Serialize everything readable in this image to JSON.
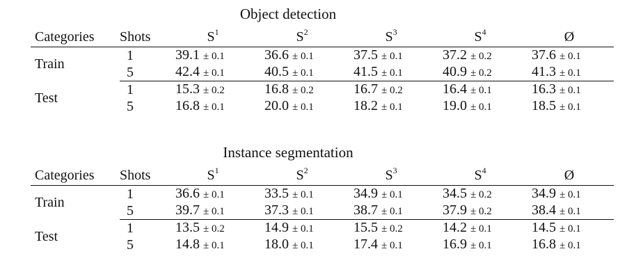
{
  "tables": [
    {
      "title": "Object detection",
      "headers": [
        "Categories",
        "Shots",
        "S",
        "S",
        "S",
        "S",
        "Ø"
      ],
      "header_sups": [
        "",
        "",
        "1",
        "2",
        "3",
        "4",
        ""
      ],
      "groups": [
        {
          "label": "Train",
          "rows": [
            {
              "shots": "1",
              "cells": [
                {
                  "v": "39.1",
                  "e": "± 0.1"
                },
                {
                  "v": "36.6",
                  "e": "± 0.1"
                },
                {
                  "v": "37.5",
                  "e": "± 0.1"
                },
                {
                  "v": "37.2",
                  "e": "± 0.2"
                },
                {
                  "v": "37.6",
                  "e": "± 0.1"
                }
              ]
            },
            {
              "shots": "5",
              "cells": [
                {
                  "v": "42.4",
                  "e": "± 0.1"
                },
                {
                  "v": "40.5",
                  "e": "± 0.1"
                },
                {
                  "v": "41.5",
                  "e": "± 0.1"
                },
                {
                  "v": "40.9",
                  "e": "± 0.2"
                },
                {
                  "v": "41.3",
                  "e": "± 0.1"
                }
              ]
            }
          ]
        },
        {
          "label": "Test",
          "rows": [
            {
              "shots": "1",
              "cells": [
                {
                  "v": "15.3",
                  "e": "± 0.2"
                },
                {
                  "v": "16.8",
                  "e": "± 0.2"
                },
                {
                  "v": "16.7",
                  "e": "± 0.2"
                },
                {
                  "v": "16.4",
                  "e": "± 0.1"
                },
                {
                  "v": "16.3",
                  "e": "± 0.1"
                }
              ]
            },
            {
              "shots": "5",
              "cells": [
                {
                  "v": "16.8",
                  "e": "± 0.1"
                },
                {
                  "v": "20.0",
                  "e": "± 0.1"
                },
                {
                  "v": "18.2",
                  "e": "± 0.1"
                },
                {
                  "v": "19.0",
                  "e": "± 0.1"
                },
                {
                  "v": "18.5",
                  "e": "± 0.1"
                }
              ]
            }
          ]
        }
      ]
    },
    {
      "title": "Instance segmentation",
      "headers": [
        "Categories",
        "Shots",
        "S",
        "S",
        "S",
        "S",
        "Ø"
      ],
      "header_sups": [
        "",
        "",
        "1",
        "2",
        "3",
        "4",
        ""
      ],
      "groups": [
        {
          "label": "Train",
          "rows": [
            {
              "shots": "1",
              "cells": [
                {
                  "v": "36.6",
                  "e": "± 0.1"
                },
                {
                  "v": "33.5",
                  "e": "± 0.1"
                },
                {
                  "v": "34.9",
                  "e": "± 0.1"
                },
                {
                  "v": "34.5",
                  "e": "± 0.2"
                },
                {
                  "v": "34.9",
                  "e": "± 0.1"
                }
              ]
            },
            {
              "shots": "5",
              "cells": [
                {
                  "v": "39.7",
                  "e": "± 0.1"
                },
                {
                  "v": "37.3",
                  "e": "± 0.1"
                },
                {
                  "v": "38.7",
                  "e": "± 0.1"
                },
                {
                  "v": "37.9",
                  "e": "± 0.2"
                },
                {
                  "v": "38.4",
                  "e": "± 0.1"
                }
              ]
            }
          ]
        },
        {
          "label": "Test",
          "rows": [
            {
              "shots": "1",
              "cells": [
                {
                  "v": "13.5",
                  "e": "± 0.2"
                },
                {
                  "v": "14.9",
                  "e": "± 0.1"
                },
                {
                  "v": "15.5",
                  "e": "± 0.2"
                },
                {
                  "v": "14.2",
                  "e": "± 0.1"
                },
                {
                  "v": "14.5",
                  "e": "± 0.1"
                }
              ]
            },
            {
              "shots": "5",
              "cells": [
                {
                  "v": "14.8",
                  "e": "± 0.1"
                },
                {
                  "v": "18.0",
                  "e": "± 0.1"
                },
                {
                  "v": "17.4",
                  "e": "± 0.1"
                },
                {
                  "v": "16.9",
                  "e": "± 0.1"
                },
                {
                  "v": "16.8",
                  "e": "± 0.1"
                }
              ]
            }
          ]
        }
      ]
    }
  ]
}
